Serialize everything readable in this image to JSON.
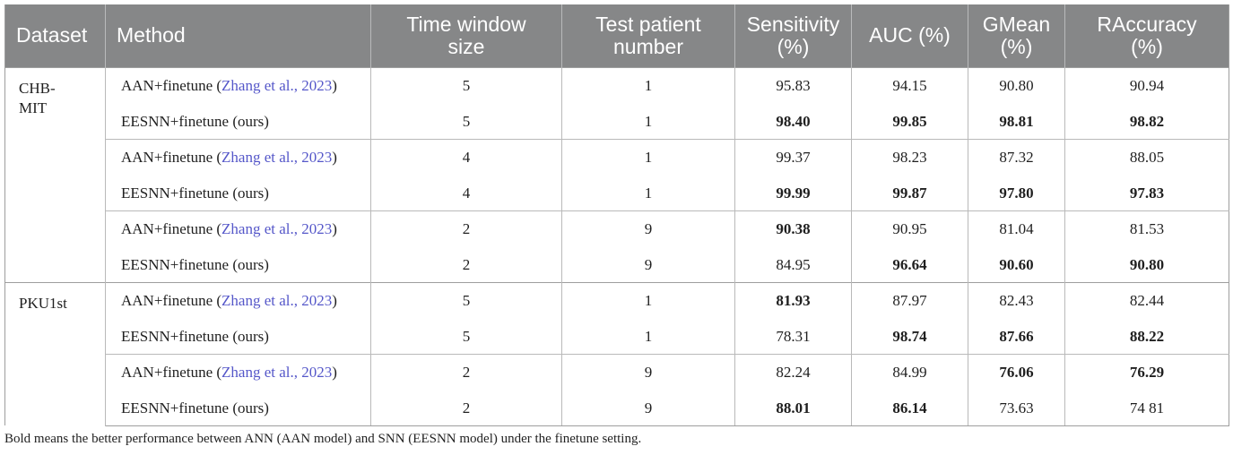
{
  "headers": [
    [
      "Dataset"
    ],
    [
      "Method"
    ],
    [
      "Time window",
      "size"
    ],
    [
      "Test patient",
      "number"
    ],
    [
      "Sensitivity",
      "(%)"
    ],
    [
      "AUC (%)"
    ],
    [
      "GMean",
      "(%)"
    ],
    [
      "RAccuracy",
      "(%)"
    ]
  ],
  "datasets": [
    {
      "name_lines": [
        "CHB-",
        "MIT"
      ],
      "groups": [
        [
          {
            "method": "AAN+finetune (",
            "cite": "Zhang et al., 2023",
            "method_end": ")",
            "tw": "5",
            "tp": "1",
            "sens": "95.83",
            "auc": "94.15",
            "gmean": "90.80",
            "racc": "90.94",
            "bold": []
          },
          {
            "method": "EESNN+finetune (ours)",
            "cite": "",
            "method_end": "",
            "tw": "5",
            "tp": "1",
            "sens": "98.40",
            "auc": "99.85",
            "gmean": "98.81",
            "racc": "98.82",
            "bold": [
              "sens",
              "auc",
              "gmean",
              "racc"
            ]
          }
        ],
        [
          {
            "method": "AAN+finetune (",
            "cite": "Zhang et al., 2023",
            "method_end": ")",
            "tw": "4",
            "tp": "1",
            "sens": "99.37",
            "auc": "98.23",
            "gmean": "87.32",
            "racc": "88.05",
            "bold": []
          },
          {
            "method": "EESNN+finetune (ours)",
            "cite": "",
            "method_end": "",
            "tw": "4",
            "tp": "1",
            "sens": "99.99",
            "auc": "99.87",
            "gmean": "97.80",
            "racc": "97.83",
            "bold": [
              "sens",
              "auc",
              "gmean",
              "racc"
            ]
          }
        ],
        [
          {
            "method": "AAN+finetune (",
            "cite": "Zhang et al., 2023",
            "method_end": ")",
            "tw": "2",
            "tp": "9",
            "sens": "90.38",
            "auc": "90.95",
            "gmean": "81.04",
            "racc": "81.53",
            "bold": [
              "sens"
            ]
          },
          {
            "method": "EESNN+finetune (ours)",
            "cite": "",
            "method_end": "",
            "tw": "2",
            "tp": "9",
            "sens": "84.95",
            "auc": "96.64",
            "gmean": "90.60",
            "racc": "90.80",
            "bold": [
              "auc",
              "gmean",
              "racc"
            ]
          }
        ]
      ]
    },
    {
      "name_lines": [
        "PKU1st"
      ],
      "groups": [
        [
          {
            "method": "AAN+finetune (",
            "cite": "Zhang et al., 2023",
            "method_end": ")",
            "tw": "5",
            "tp": "1",
            "sens": "81.93",
            "auc": "87.97",
            "gmean": "82.43",
            "racc": "82.44",
            "bold": [
              "sens"
            ]
          },
          {
            "method": "EESNN+finetune (ours)",
            "cite": "",
            "method_end": "",
            "tw": "5",
            "tp": "1",
            "sens": "78.31",
            "auc": "98.74",
            "gmean": "87.66",
            "racc": "88.22",
            "bold": [
              "auc",
              "gmean",
              "racc"
            ]
          }
        ],
        [
          {
            "method": "AAN+finetune (",
            "cite": "Zhang et al., 2023",
            "method_end": ")",
            "tw": "2",
            "tp": "9",
            "sens": "82.24",
            "auc": "84.99",
            "gmean": "76.06",
            "racc": "76.29",
            "bold": [
              "gmean",
              "racc"
            ]
          },
          {
            "method": "EESNN+finetune (ours)",
            "cite": "",
            "method_end": "",
            "tw": "2",
            "tp": "9",
            "sens": "88.01",
            "auc": "86.14",
            "gmean": "73.63",
            "racc": "74 81",
            "bold": [
              "sens",
              "auc"
            ]
          }
        ]
      ]
    }
  ],
  "footnote": "Bold means the better performance between ANN (AAN model) and SNN (EESNN model) under the finetune setting."
}
